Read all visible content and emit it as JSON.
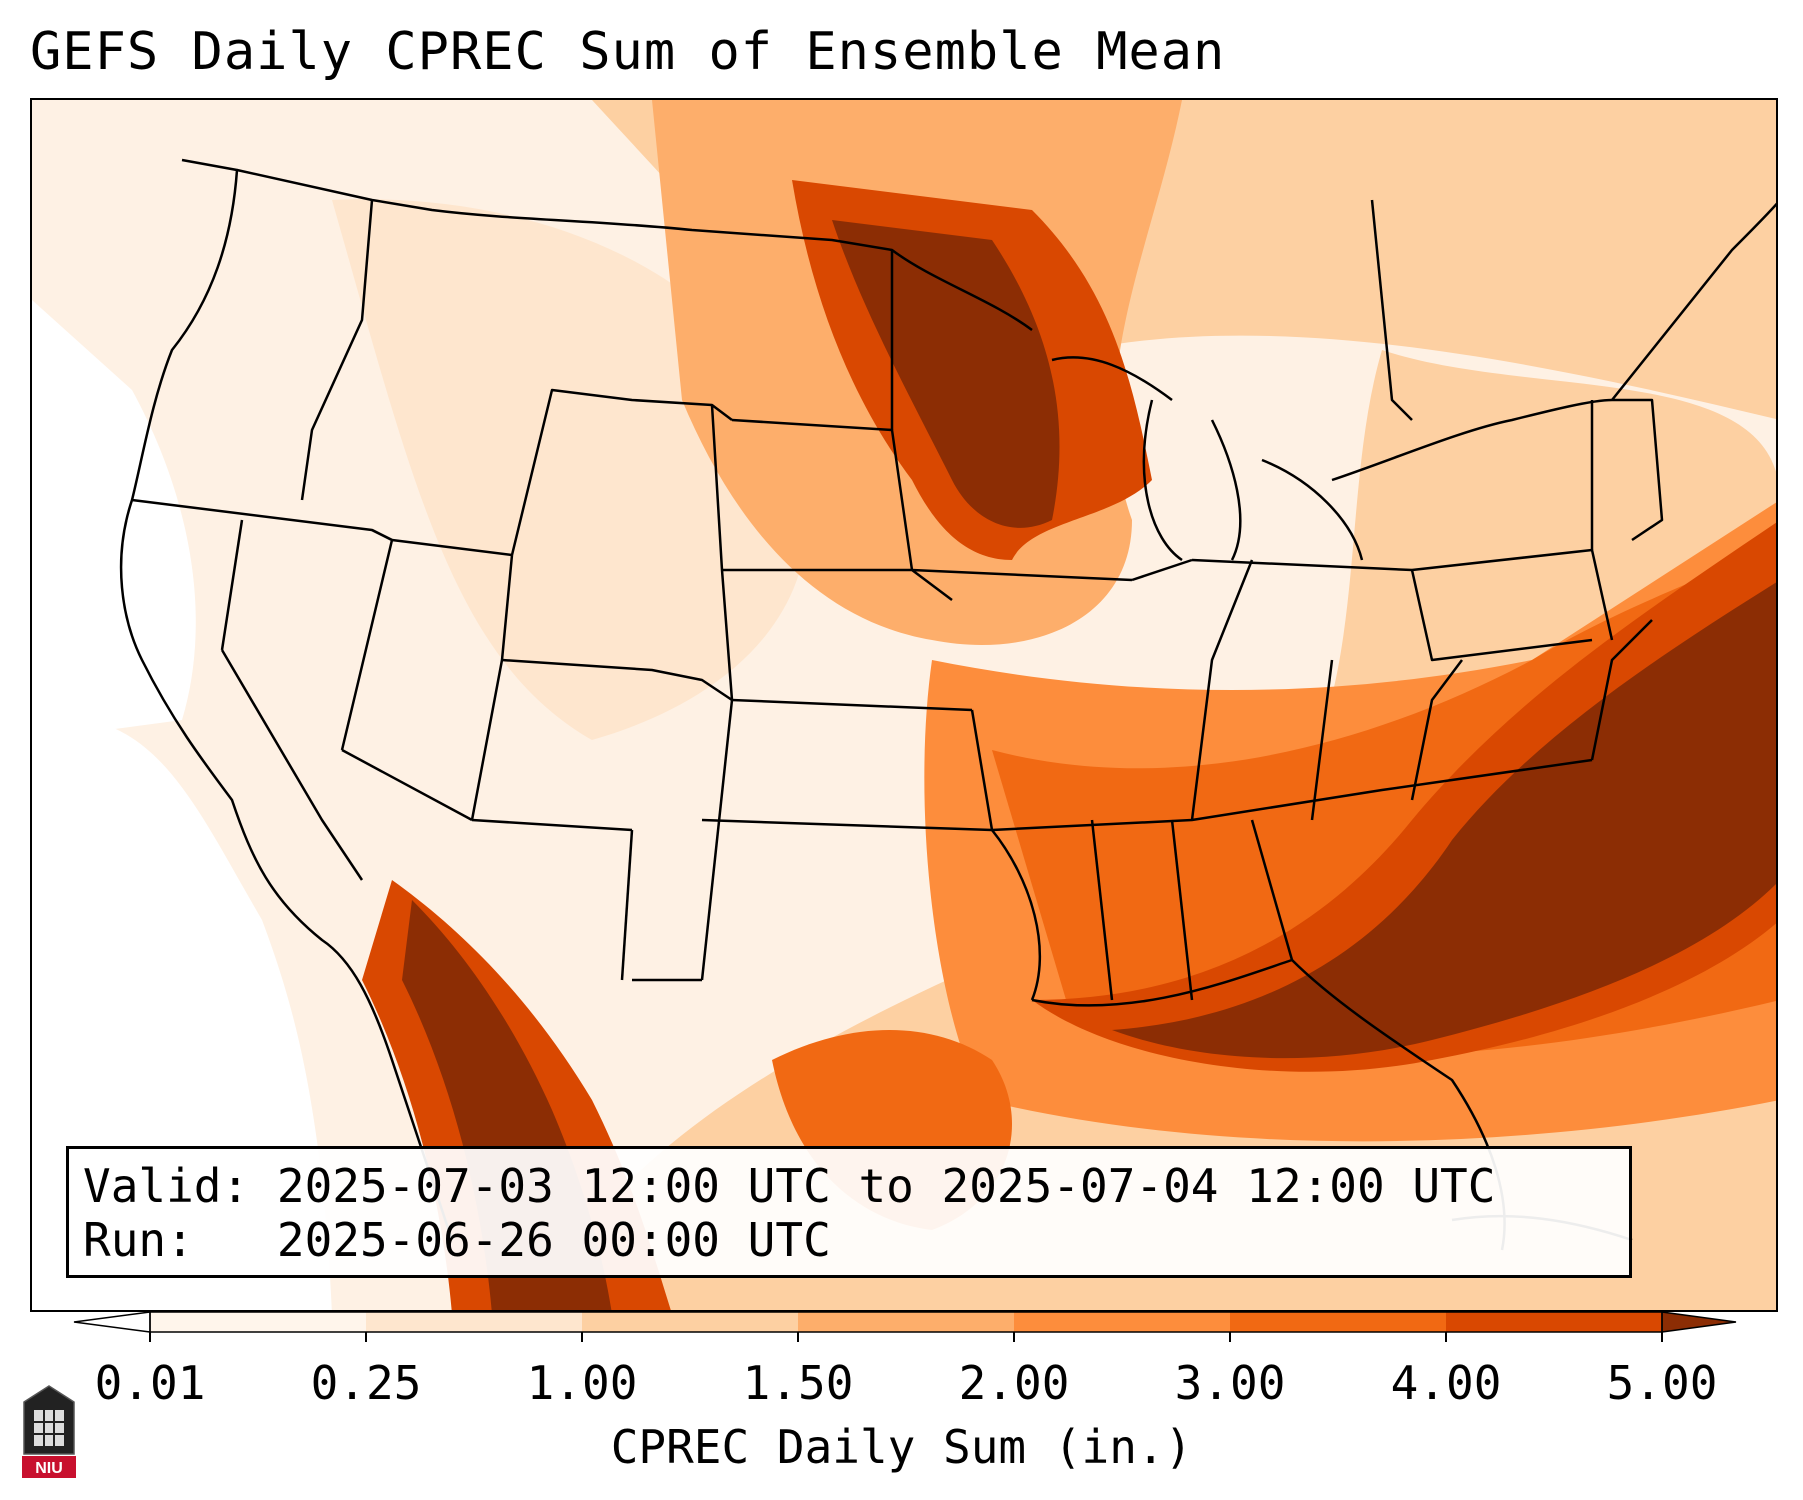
{
  "title": "GEFS Daily CPREC Sum of Ensemble Mean",
  "info": {
    "valid_label": "Valid:",
    "valid_value": "2025-07-03 12:00 UTC to 2025-07-04 12:00 UTC",
    "run_label": "Run:",
    "run_value": "2025-06-26 00:00 UTC"
  },
  "colorbar": {
    "label": "CPREC Daily Sum (in.)",
    "ticks": [
      "0.01",
      "0.25",
      "1.00",
      "1.50",
      "2.00",
      "3.00",
      "4.00",
      "5.00"
    ],
    "colors": [
      "#fff5eb",
      "#fee6ce",
      "#fdd0a2",
      "#fdae6b",
      "#fd8d3c",
      "#f16913",
      "#d94801",
      "#8c2d04"
    ]
  },
  "logo": {
    "text": "NIU"
  }
}
